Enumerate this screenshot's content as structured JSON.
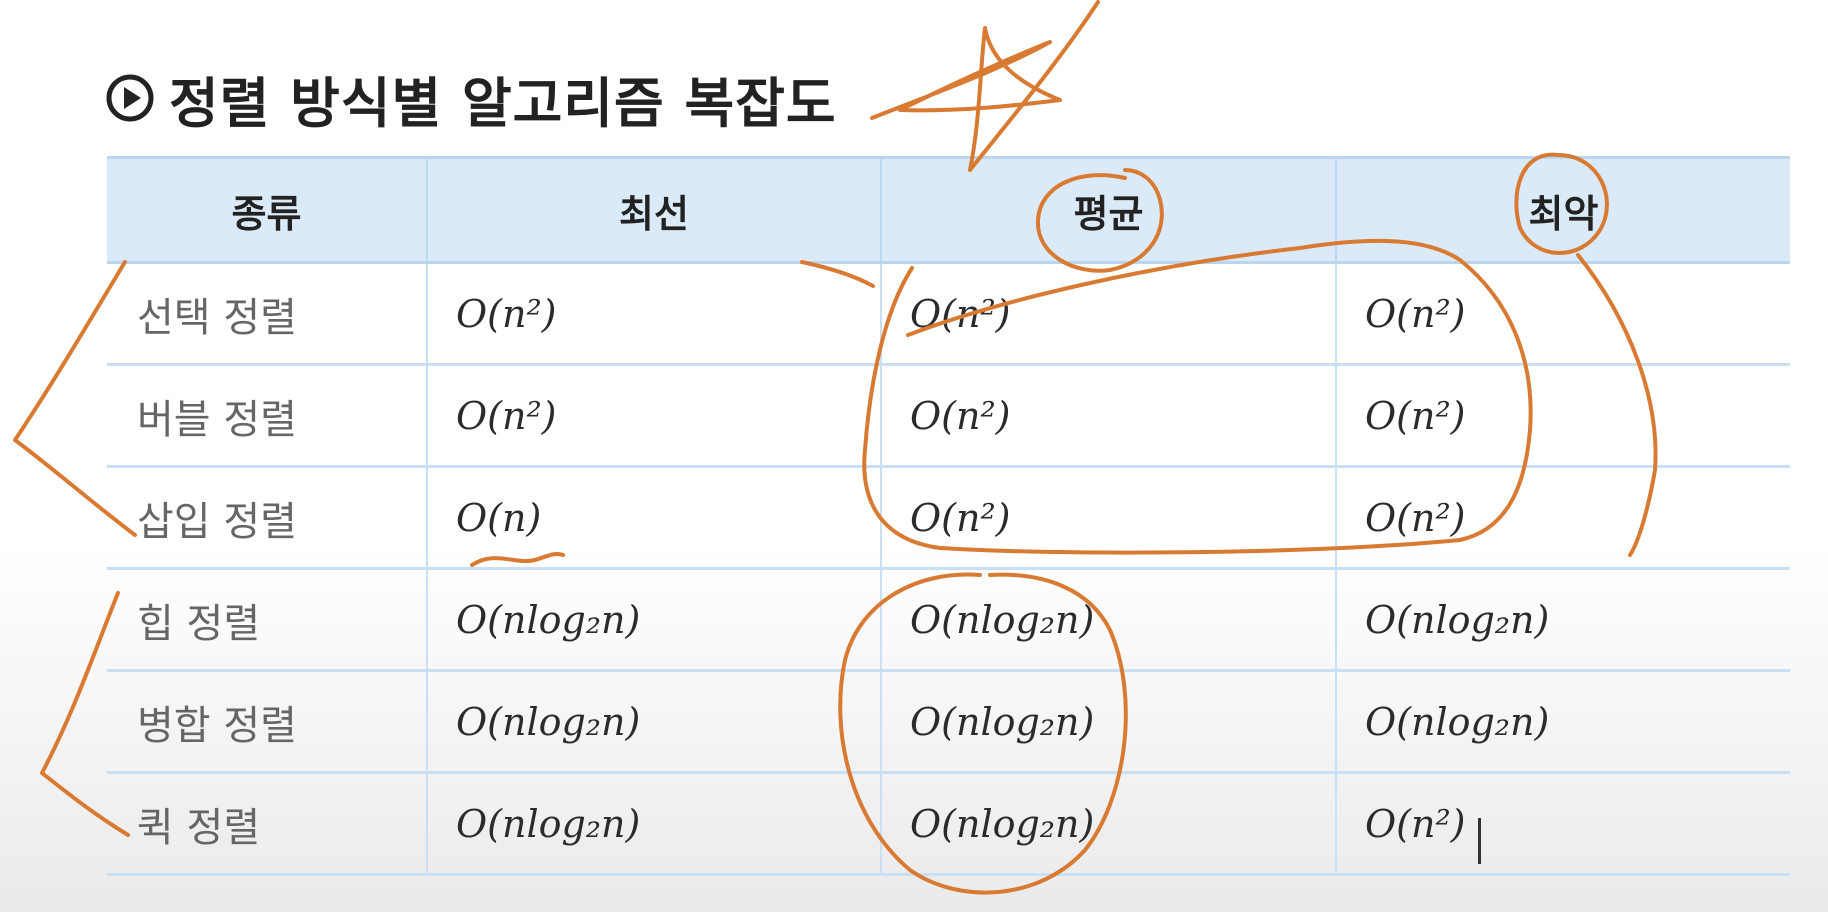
{
  "title": {
    "icon": "play-circle-icon",
    "text": "정렬 방식별 알고리즘 복잡도"
  },
  "table": {
    "headers": [
      "종류",
      "최선",
      "평균",
      "최악"
    ],
    "rows": [
      [
        "선택 정렬",
        "O(n²)",
        "O(n²)",
        "O(n²)"
      ],
      [
        "버블 정렬",
        "O(n²)",
        "O(n²)",
        "O(n²)"
      ],
      [
        "삽입 정렬",
        "O(n)",
        "O(n²)",
        "O(n²)"
      ],
      [
        "힙 정렬",
        "O(nlog₂n)",
        "O(nlog₂n)",
        "O(nlog₂n)"
      ],
      [
        "병합 정렬",
        "O(nlog₂n)",
        "O(nlog₂n)",
        "O(nlog₂n)"
      ],
      [
        "퀵 정렬",
        "O(nlog₂n)",
        "O(nlog₂n)",
        "O(n²)"
      ]
    ]
  },
  "colors": {
    "header_bg": "#dbeaf8",
    "grid": "#c9dff3",
    "annotation": "#d97a33",
    "title_text": "#222222"
  }
}
